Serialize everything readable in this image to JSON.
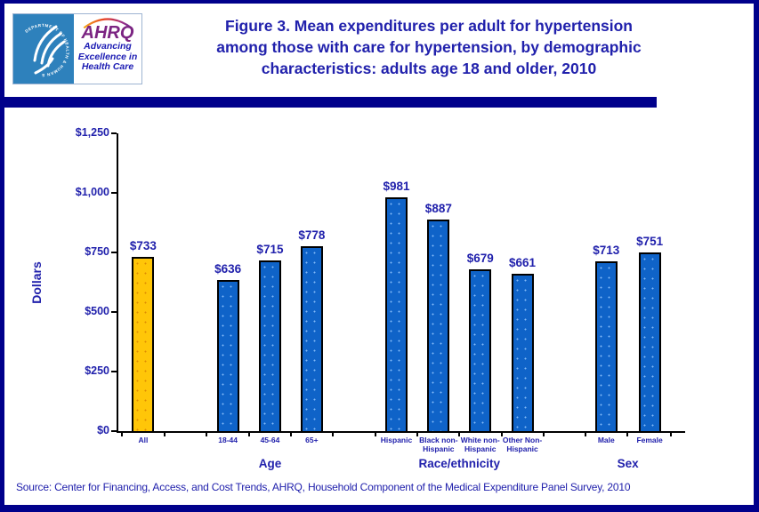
{
  "header": {
    "logo": {
      "seal_text": "DEPARTMENT OF HEALTH & HUMAN SERVICES·USA",
      "ahrq": "AHRQ",
      "tagline_lines": [
        "Advancing",
        "Excellence in",
        "Health Care"
      ]
    },
    "title_lines": [
      "Figure 3. Mean expenditures per adult for hypertension",
      "among those with care for hypertension, by demographic",
      "characteristics: adults age 18 and older, 2010"
    ]
  },
  "footer": {
    "source": "Source: Center for Financing, Access, and Cost Trends, AHRQ, Household Component of the Medical Expenditure Panel Survey, 2010"
  },
  "colors": {
    "border_navy": "#00008B",
    "text_blue": "#2121AC",
    "bar_blue": "#0F63C8",
    "bar_gold": "#FFC608",
    "seal_blue": "#2E81BC",
    "ahrq_purple": "#7B2482"
  },
  "chart_data": {
    "type": "bar",
    "title": "Figure 3. Mean expenditures per adult for hypertension among those with care for hypertension, by demographic characteristics: adults age 18 and older, 2010",
    "ylabel": "Dollars",
    "xlabel": "",
    "ylim": [
      0,
      1250
    ],
    "y_ticks": [
      0,
      250,
      500,
      750,
      1000,
      1250
    ],
    "y_tick_labels": [
      "$0",
      "$250",
      "$500",
      "$750",
      "$1,000",
      "$1,250"
    ],
    "grid": false,
    "legend": "none",
    "groups": [
      {
        "label": "",
        "categories": [
          "All"
        ],
        "values": [
          733
        ],
        "value_labels": [
          "$733"
        ],
        "highlight": true
      },
      {
        "label": "Age",
        "categories": [
          "18-44",
          "45-64",
          "65+"
        ],
        "values": [
          636,
          715,
          778
        ],
        "value_labels": [
          "$636",
          "$715",
          "$778"
        ],
        "highlight": false
      },
      {
        "label": "Race/ethnicity",
        "categories": [
          "Hispanic",
          "Black non-Hispanic",
          "White non-Hispanic",
          "Other Non-Hispanic"
        ],
        "values": [
          981,
          887,
          679,
          661
        ],
        "value_labels": [
          "$981",
          "$887",
          "$679",
          "$661"
        ],
        "highlight": false
      },
      {
        "label": "Sex",
        "categories": [
          "Male",
          "Female"
        ],
        "values": [
          713,
          751
        ],
        "value_labels": [
          "$713",
          "$751"
        ],
        "highlight": false
      }
    ]
  }
}
